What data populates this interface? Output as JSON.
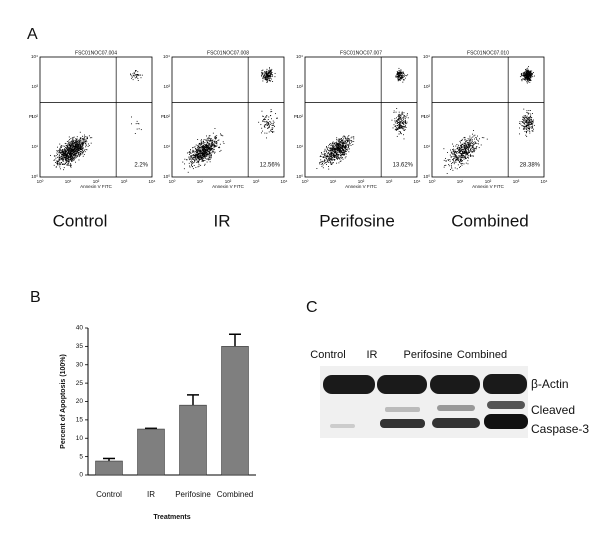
{
  "panel_a": {
    "label": "A",
    "plots": [
      {
        "file": "FSC01NOC07.004",
        "percent": "2.2%",
        "name": "Control"
      },
      {
        "file": "FSC01NOC07.008",
        "percent": "12.56%",
        "name": "IR"
      },
      {
        "file": "FSC01NOC07.007",
        "percent": "13.62%",
        "name": "Perifosine"
      },
      {
        "file": "FSC01NOC07.010",
        "percent": "28.38%",
        "name": "Combined"
      }
    ],
    "x_axis_label": "Annexin V FITC",
    "y_axis_label": "PI",
    "ticks": [
      "10⁰",
      "10¹",
      "10²",
      "10³",
      "10⁴"
    ]
  },
  "panel_b": {
    "label": "B"
  },
  "chart_data": {
    "type": "bar",
    "ylabel": "Percent of Apoptosis (100%)",
    "xlabel": "Treatments",
    "categories": [
      "Control",
      "IR",
      "Perifosine",
      "Combined"
    ],
    "values": [
      3.8,
      12.5,
      19,
      35
    ],
    "errors": [
      0.7,
      0.2,
      2.8,
      3.3
    ],
    "color": "#7f7f7f",
    "ylim": [
      0,
      40
    ],
    "yticks": [
      0,
      5,
      10,
      15,
      20,
      25,
      30,
      35,
      40
    ]
  },
  "panel_c": {
    "label": "C",
    "lanes": [
      "Control",
      "IR",
      "Perifosine",
      "Combined"
    ],
    "bands": [
      "β-Actin",
      "Cleaved",
      "Caspase-3"
    ]
  }
}
